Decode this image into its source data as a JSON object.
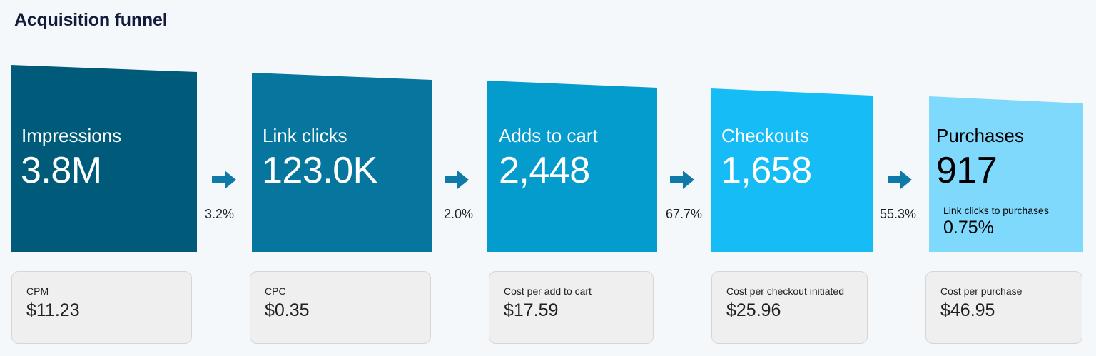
{
  "title": "Acquisition funnel",
  "stages": [
    {
      "label": "Impressions",
      "value": "3.8M",
      "color": "#005b7a",
      "text_color": "#ffffff"
    },
    {
      "label": "Link clicks",
      "value": "123.0K",
      "color": "#06769e",
      "text_color": "#ffffff"
    },
    {
      "label": "Adds to cart",
      "value": "2,448",
      "color": "#049bcd",
      "text_color": "#ffffff"
    },
    {
      "label": "Checkouts",
      "value": "1,658",
      "color": "#16bcf6",
      "text_color": "#ffffff"
    },
    {
      "label": "Purchases",
      "value": "917",
      "color": "#7fd9fc",
      "text_color": "#000000",
      "sub_label": "Link clicks to purchases",
      "sub_value": "0.75%"
    }
  ],
  "conversion_rates": [
    "3.2%",
    "2.0%",
    "67.7%",
    "55.3%"
  ],
  "arrow_color": "#0f7aa8",
  "cost_cards": [
    {
      "label": "CPM",
      "value": "$11.23"
    },
    {
      "label": "CPC",
      "value": "$0.35"
    },
    {
      "label": "Cost per add to cart",
      "value": "$17.59"
    },
    {
      "label": "Cost per checkout initiated",
      "value": "$25.96"
    },
    {
      "label": "Cost per purchase",
      "value": "$46.95"
    }
  ]
}
